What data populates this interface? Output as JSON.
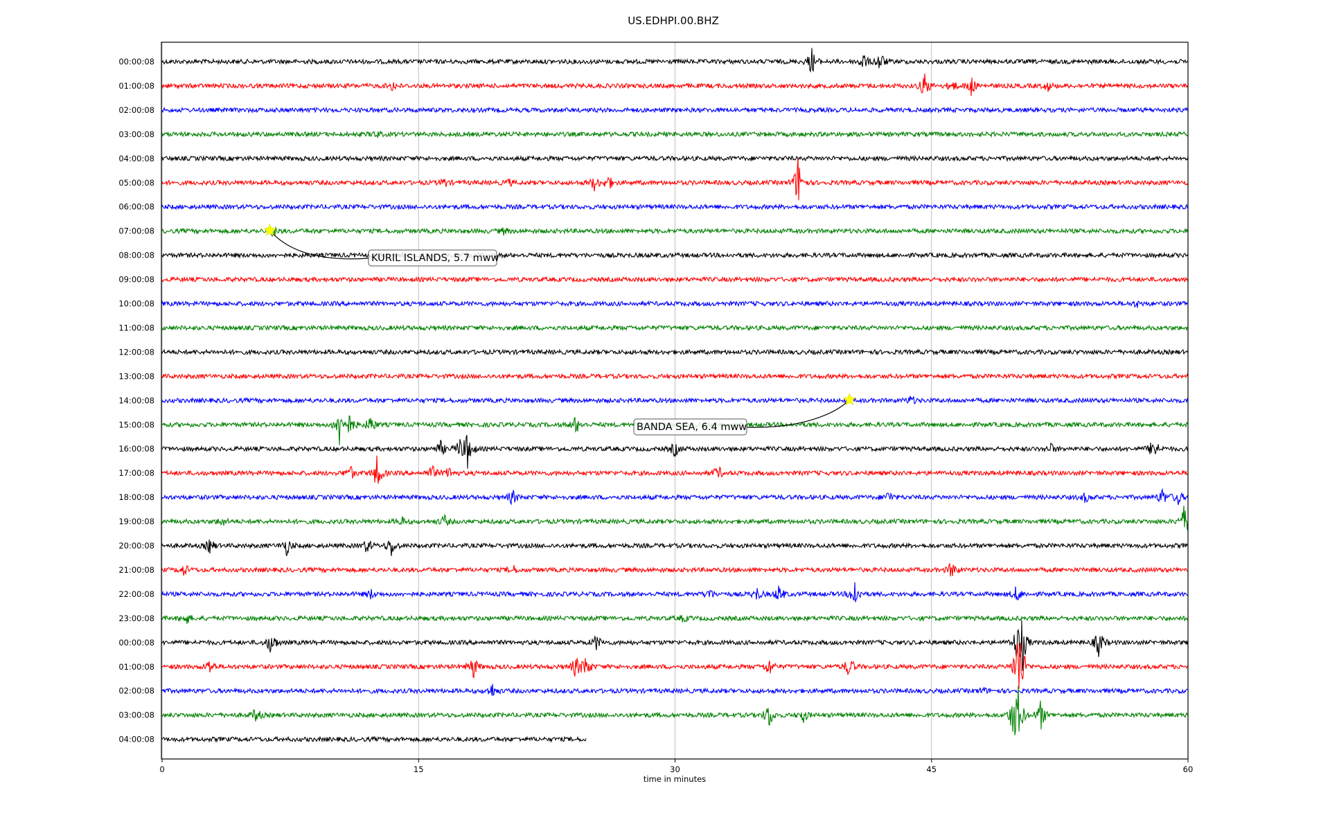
{
  "chart_data": {
    "type": "line",
    "title": "US.EDHPI.00.BHZ",
    "xlabel": "time in minutes",
    "xlim": [
      0,
      60
    ],
    "xticks": [
      "0",
      "15",
      "30",
      "45",
      "60"
    ],
    "grid": "vertical lines at 15-minute ticks",
    "trace_colors": [
      "#000000",
      "#ff0000",
      "#0000ff",
      "#008000"
    ],
    "rows": [
      {
        "label": "00:00:08",
        "events": [
          [
            38,
            0.9
          ],
          [
            41,
            0.6
          ],
          [
            42,
            0.7
          ]
        ]
      },
      {
        "label": "01:00:08",
        "events": [
          [
            44.6,
            0.9
          ],
          [
            46.2,
            0.4
          ],
          [
            47.3,
            0.7
          ],
          [
            51.8,
            0.3
          ],
          [
            13.5,
            0.3
          ]
        ]
      },
      {
        "label": "02:00:08",
        "events": []
      },
      {
        "label": "03:00:08",
        "events": [
          [
            12.5,
            0.2
          ]
        ]
      },
      {
        "label": "04:00:08",
        "events": []
      },
      {
        "label": "05:00:08",
        "events": [
          [
            16.5,
            0.3
          ],
          [
            25.3,
            0.5
          ],
          [
            26.1,
            0.5
          ],
          [
            37.2,
            1.8
          ],
          [
            20.3,
            0.2
          ]
        ]
      },
      {
        "label": "06:00:08",
        "events": []
      },
      {
        "label": "07:00:08",
        "events": [
          [
            6.5,
            0.3
          ],
          [
            20,
            0.2
          ]
        ]
      },
      {
        "label": "08:00:08",
        "events": []
      },
      {
        "label": "09:00:08",
        "events": []
      },
      {
        "label": "10:00:08",
        "events": [
          [
            57,
            0.2
          ]
        ]
      },
      {
        "label": "11:00:08",
        "events": []
      },
      {
        "label": "12:00:08",
        "events": []
      },
      {
        "label": "13:00:08",
        "events": []
      },
      {
        "label": "14:00:08",
        "events": [
          [
            43.8,
            0.3
          ]
        ]
      },
      {
        "label": "15:00:08",
        "events": [
          [
            10.4,
            1.6
          ],
          [
            11,
            0.7
          ],
          [
            12.2,
            0.6
          ],
          [
            24.2,
            0.6
          ]
        ]
      },
      {
        "label": "16:00:08",
        "events": [
          [
            16.3,
            0.5
          ],
          [
            17.4,
            0.6
          ],
          [
            17.9,
            1.4
          ],
          [
            30,
            0.5
          ],
          [
            52,
            0.3
          ],
          [
            58,
            0.9
          ]
        ]
      },
      {
        "label": "17:00:08",
        "events": [
          [
            11,
            0.5
          ],
          [
            12.6,
            1.3
          ],
          [
            15.8,
            0.5
          ],
          [
            16.8,
            0.4
          ],
          [
            32.5,
            0.5
          ]
        ]
      },
      {
        "label": "18:00:08",
        "events": [
          [
            20.5,
            0.5
          ],
          [
            42.5,
            0.4
          ],
          [
            54,
            0.3
          ],
          [
            58.5,
            0.6
          ],
          [
            59.4,
            0.5
          ]
        ]
      },
      {
        "label": "19:00:08",
        "events": [
          [
            3.5,
            0.3
          ],
          [
            14,
            0.3
          ],
          [
            16.5,
            0.4
          ],
          [
            59.8,
            1.2
          ]
        ]
      },
      {
        "label": "20:00:08",
        "events": [
          [
            2.8,
            0.5
          ],
          [
            7.3,
            0.6
          ],
          [
            12,
            0.5
          ],
          [
            13.4,
            0.7
          ]
        ]
      },
      {
        "label": "21:00:08",
        "events": [
          [
            1.3,
            0.4
          ],
          [
            20.5,
            0.3
          ],
          [
            46.2,
            0.6
          ]
        ]
      },
      {
        "label": "22:00:08",
        "events": [
          [
            12.2,
            0.3
          ],
          [
            32,
            0.4
          ],
          [
            34.8,
            0.4
          ],
          [
            36.1,
            0.6
          ],
          [
            40.5,
            1.1
          ],
          [
            50,
            0.6
          ]
        ]
      },
      {
        "label": "23:00:08",
        "events": [
          [
            1.4,
            0.4
          ],
          [
            30.5,
            0.2
          ]
        ]
      },
      {
        "label": "00:00:08",
        "events": [
          [
            6.4,
            0.9
          ],
          [
            25.4,
            0.5
          ],
          [
            50,
            1.0
          ],
          [
            50.3,
            1.8
          ],
          [
            54.8,
            1.0
          ]
        ]
      },
      {
        "label": "01:00:08",
        "events": [
          [
            2.8,
            0.5
          ],
          [
            18.2,
            0.8
          ],
          [
            24.2,
            0.7
          ],
          [
            24.8,
            0.8
          ],
          [
            35.5,
            0.6
          ],
          [
            40.2,
            0.8
          ],
          [
            50,
            1.4
          ],
          [
            50.2,
            2.2
          ]
        ]
      },
      {
        "label": "02:00:08",
        "events": [
          [
            19.3,
            0.5
          ],
          [
            48,
            0.2
          ]
        ]
      },
      {
        "label": "03:00:08",
        "events": [
          [
            5.5,
            0.5
          ],
          [
            35.5,
            0.9
          ],
          [
            37.5,
            0.5
          ],
          [
            49.8,
            1.4
          ],
          [
            50.1,
            1.8
          ],
          [
            51.4,
            1.0
          ]
        ]
      },
      {
        "label": "04:00:08",
        "events": [],
        "end": 24.8
      }
    ],
    "annotations": [
      {
        "text": "KURIL ISLANDS, 5.7 mww",
        "row": 7,
        "x": 6.3
      },
      {
        "text": "BANDA SEA, 6.4 mww",
        "row": 14,
        "x": 40.2
      }
    ]
  }
}
